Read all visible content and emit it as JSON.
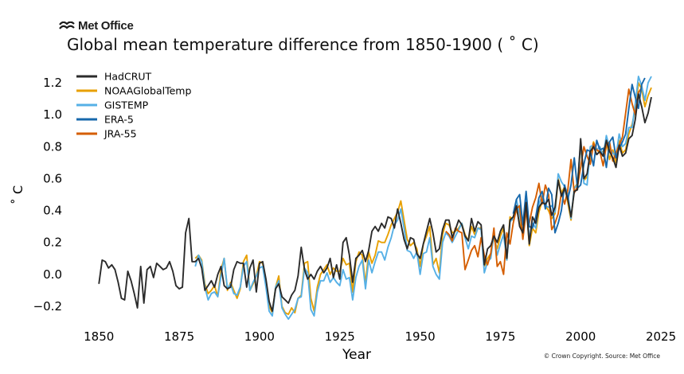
{
  "brand": {
    "logo_text": "Met Office",
    "logo_icon": "met-office-waves-icon"
  },
  "credit": "© Crown Copyright. Source: Met Office",
  "chart_data": {
    "type": "line",
    "title": "Global mean temperature difference from 1850-1900 ( ˚ C)",
    "xlabel": "Year",
    "ylabel": "˚ C",
    "xlim": [
      1843,
      2023
    ],
    "ylim": [
      -0.3,
      1.28
    ],
    "xticks": [
      1850,
      1875,
      1900,
      1925,
      1950,
      1975,
      2000,
      2025
    ],
    "yticks": [
      -0.2,
      0.0,
      0.2,
      0.4,
      0.6,
      0.8,
      1.0,
      1.2
    ],
    "grid": false,
    "legend_position": "top-left",
    "series": [
      {
        "name": "HadCRUT",
        "color": "#2b2b2b",
        "start_year": 1850,
        "values": [
          -0.06,
          0.09,
          0.08,
          0.04,
          0.06,
          0.03,
          -0.05,
          -0.15,
          -0.16,
          0.02,
          -0.04,
          -0.12,
          -0.21,
          0.05,
          -0.18,
          0.03,
          0.05,
          -0.02,
          0.07,
          0.05,
          0.03,
          0.04,
          0.08,
          0.02,
          -0.07,
          -0.09,
          -0.08,
          0.26,
          0.35,
          0.08,
          0.08,
          0.1,
          0.04,
          -0.1,
          -0.07,
          -0.04,
          -0.08,
          0.0,
          0.05,
          -0.07,
          -0.09,
          -0.08,
          0.03,
          0.08,
          0.07,
          0.07,
          -0.08,
          0.04,
          0.09,
          -0.11,
          0.07,
          0.08,
          -0.03,
          -0.17,
          -0.23,
          -0.09,
          -0.06,
          -0.14,
          -0.16,
          -0.18,
          -0.13,
          -0.1,
          -0.01,
          0.17,
          0.03,
          -0.03,
          0.0,
          -0.03,
          0.02,
          0.05,
          0.01,
          0.04,
          0.1,
          -0.02,
          0.06,
          -0.03,
          0.2,
          0.23,
          0.12,
          -0.05,
          0.1,
          0.12,
          0.15,
          0.08,
          0.15,
          0.27,
          0.3,
          0.27,
          0.32,
          0.29,
          0.36,
          0.35,
          0.29,
          0.41,
          0.32,
          0.22,
          0.16,
          0.23,
          0.22,
          0.13,
          0.1,
          0.19,
          0.27,
          0.35,
          0.26,
          0.14,
          0.16,
          0.28,
          0.34,
          0.34,
          0.23,
          0.28,
          0.34,
          0.31,
          0.24,
          0.21,
          0.35,
          0.27,
          0.33,
          0.31,
          0.06,
          0.16,
          0.18,
          0.24,
          0.2,
          0.27,
          0.31,
          0.1,
          0.34,
          0.36,
          0.43,
          0.3,
          0.26,
          0.45,
          0.19,
          0.36,
          0.32,
          0.42,
          0.45,
          0.44,
          0.47,
          0.37,
          0.42,
          0.59,
          0.49,
          0.54,
          0.47,
          0.36,
          0.52,
          0.53,
          0.85,
          0.6,
          0.63,
          0.77,
          0.8,
          0.75,
          0.77,
          0.74,
          0.84,
          0.77,
          0.73,
          0.67,
          0.81,
          0.74,
          0.76,
          0.85,
          0.87,
          0.97,
          1.13,
          1.05,
          0.95,
          1.01,
          1.11
        ]
      },
      {
        "name": "NOAAGlobalTemp",
        "color": "#e8a000",
        "start_year": 1880,
        "values": [
          0.1,
          0.12,
          0.09,
          -0.06,
          -0.12,
          -0.1,
          -0.07,
          -0.14,
          0.03,
          0.1,
          -0.1,
          -0.05,
          -0.1,
          -0.15,
          -0.09,
          0.08,
          0.12,
          -0.1,
          -0.06,
          -0.01,
          0.08,
          0.07,
          -0.06,
          -0.2,
          -0.24,
          -0.08,
          -0.01,
          -0.2,
          -0.24,
          -0.25,
          -0.21,
          -0.24,
          -0.15,
          -0.13,
          0.07,
          0.08,
          -0.15,
          -0.23,
          -0.08,
          0.0,
          0.03,
          0.06,
          0.0,
          0.04,
          0.02,
          0.02,
          0.1,
          0.06,
          0.07,
          -0.11,
          0.08,
          0.14,
          0.12,
          -0.06,
          0.14,
          0.07,
          0.12,
          0.21,
          0.2,
          0.2,
          0.25,
          0.31,
          0.35,
          0.39,
          0.46,
          0.34,
          0.22,
          0.18,
          0.2,
          0.16,
          0.05,
          0.19,
          0.24,
          0.3,
          0.06,
          0.1,
          0.01,
          0.25,
          0.32,
          0.31,
          0.26,
          0.27,
          0.29,
          0.32,
          0.25,
          0.21,
          0.3,
          0.25,
          0.29,
          0.29,
          0.05,
          0.1,
          0.13,
          0.23,
          0.16,
          0.24,
          0.29,
          0.09,
          0.36,
          0.34,
          0.41,
          0.32,
          0.25,
          0.45,
          0.18,
          0.29,
          0.26,
          0.39,
          0.46,
          0.43,
          0.4,
          0.35,
          0.38,
          0.6,
          0.51,
          0.55,
          0.45,
          0.34,
          0.54,
          0.57,
          0.81,
          0.59,
          0.61,
          0.75,
          0.83,
          0.78,
          0.76,
          0.77,
          0.84,
          0.72,
          0.78,
          0.7,
          0.84,
          0.76,
          0.78,
          0.88,
          0.94,
          1.03,
          1.2,
          1.16,
          1.05,
          1.12,
          1.17
        ]
      },
      {
        "name": "GISTEMP",
        "color": "#56b0e6",
        "start_year": 1880,
        "values": [
          0.05,
          0.12,
          0.08,
          -0.08,
          -0.16,
          -0.12,
          -0.11,
          -0.14,
          -0.01,
          0.1,
          -0.09,
          -0.06,
          -0.12,
          -0.13,
          -0.08,
          0.05,
          0.08,
          -0.1,
          -0.05,
          -0.01,
          0.04,
          0.05,
          -0.08,
          -0.23,
          -0.26,
          -0.08,
          -0.04,
          -0.21,
          -0.25,
          -0.28,
          -0.25,
          -0.22,
          -0.15,
          -0.14,
          0.04,
          0.01,
          -0.22,
          -0.26,
          -0.11,
          -0.04,
          -0.04,
          0.01,
          -0.05,
          -0.02,
          -0.05,
          -0.07,
          0.03,
          -0.03,
          -0.02,
          -0.16,
          -0.02,
          0.05,
          0.09,
          -0.09,
          0.09,
          0.01,
          0.08,
          0.14,
          0.14,
          0.09,
          0.17,
          0.23,
          0.31,
          0.34,
          0.41,
          0.29,
          0.15,
          0.14,
          0.1,
          0.14,
          0.0,
          0.13,
          0.14,
          0.23,
          0.05,
          0.0,
          -0.03,
          0.2,
          0.26,
          0.24,
          0.2,
          0.24,
          0.28,
          0.32,
          0.23,
          0.16,
          0.24,
          0.23,
          0.29,
          0.28,
          0.01,
          0.08,
          0.1,
          0.26,
          0.12,
          0.19,
          0.25,
          0.09,
          0.33,
          0.35,
          0.47,
          0.37,
          0.27,
          0.51,
          0.22,
          0.32,
          0.29,
          0.44,
          0.49,
          0.43,
          0.42,
          0.43,
          0.39,
          0.63,
          0.58,
          0.55,
          0.51,
          0.35,
          0.54,
          0.56,
          0.83,
          0.57,
          0.56,
          0.8,
          0.81,
          0.78,
          0.8,
          0.74,
          0.87,
          0.79,
          0.76,
          0.74,
          0.88,
          0.8,
          0.82,
          0.92,
          0.92,
          1.07,
          1.24,
          1.18,
          1.09,
          1.2,
          1.24
        ]
      },
      {
        "name": "ERA-5",
        "color": "#1768ac",
        "start_year": 1979,
        "values": [
          0.38,
          0.47,
          0.5,
          0.31,
          0.52,
          0.3,
          0.29,
          0.36,
          0.48,
          0.52,
          0.41,
          0.54,
          0.5,
          0.26,
          0.32,
          0.4,
          0.56,
          0.47,
          0.56,
          0.73,
          0.54,
          0.56,
          0.69,
          0.78,
          0.77,
          0.68,
          0.84,
          0.78,
          0.79,
          0.67,
          0.83,
          0.86,
          0.73,
          0.79,
          0.83,
          0.88,
          1.04,
          1.19,
          1.11,
          1.04,
          1.19,
          1.23
        ]
      },
      {
        "name": "JRA-55",
        "color": "#d55e00",
        "start_year": 1958,
        "values": [
          0.27,
          0.25,
          0.21,
          0.29,
          0.27,
          0.26,
          0.03,
          0.09,
          0.15,
          0.18,
          0.11,
          0.23,
          0.12,
          0.06,
          0.13,
          0.29,
          0.05,
          0.08,
          0.0,
          0.26,
          0.19,
          0.32,
          0.41,
          0.43,
          0.22,
          0.39,
          0.32,
          0.42,
          0.48,
          0.57,
          0.44,
          0.56,
          0.5,
          0.28,
          0.32,
          0.38,
          0.51,
          0.44,
          0.53,
          0.72,
          0.51,
          0.55,
          0.67,
          0.8,
          0.74,
          0.69,
          0.82,
          0.78,
          0.77,
          0.68,
          0.81,
          0.83,
          0.71,
          0.76,
          0.81,
          0.86,
          1.01,
          1.16,
          1.07,
          1.0,
          1.14,
          1.17
        ]
      }
    ]
  }
}
